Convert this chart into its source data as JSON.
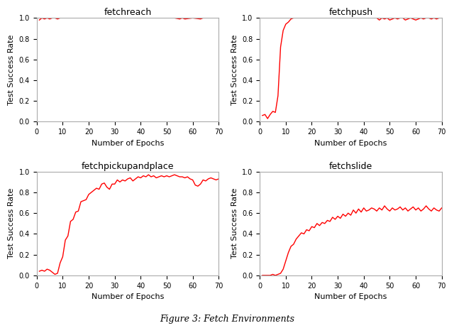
{
  "line_color": "#ff0000",
  "line_width": 1.0,
  "xlim": [
    0,
    70
  ],
  "ylim": [
    0.0,
    1.0
  ],
  "xlabel": "Number of Epochs",
  "ylabel": "Test Success Rate",
  "xticks": [
    0,
    10,
    20,
    30,
    40,
    50,
    60,
    70
  ],
  "yticks": [
    0.0,
    0.2,
    0.4,
    0.6,
    0.8,
    1.0
  ],
  "subplots": [
    {
      "title": "fetchreach",
      "x": [
        1,
        2,
        3,
        4,
        5,
        6,
        7,
        8,
        9,
        10,
        11,
        12,
        13,
        14,
        15,
        20,
        25,
        30,
        35,
        40,
        45,
        50,
        53,
        55,
        56,
        57,
        60,
        63,
        64,
        65,
        70
      ],
      "y": [
        0.98,
        1.0,
        0.99,
        1.0,
        0.99,
        1.0,
        1.0,
        0.99,
        1.0,
        1.0,
        1.0,
        1.0,
        1.0,
        1.0,
        1.0,
        1.0,
        1.0,
        1.0,
        1.0,
        1.0,
        1.0,
        1.0,
        1.0,
        0.99,
        1.0,
        0.99,
        1.0,
        0.99,
        1.0,
        1.0,
        1.0
      ]
    },
    {
      "title": "fetchpush",
      "x": [
        1,
        2,
        3,
        4,
        5,
        6,
        7,
        8,
        9,
        10,
        11,
        12,
        13,
        14,
        15,
        16,
        17,
        18,
        19,
        20,
        21,
        22,
        23,
        24,
        25,
        26,
        27,
        28,
        29,
        30,
        31,
        32,
        33,
        34,
        35,
        36,
        37,
        38,
        39,
        40,
        41,
        42,
        43,
        44,
        45,
        46,
        47,
        48,
        49,
        50,
        51,
        52,
        53,
        54,
        55,
        56,
        57,
        58,
        59,
        60,
        61,
        62,
        63,
        64,
        65,
        66,
        67,
        68,
        69,
        70
      ],
      "y": [
        0.06,
        0.07,
        0.03,
        0.07,
        0.1,
        0.09,
        0.25,
        0.72,
        0.88,
        0.94,
        0.96,
        0.99,
        1.0,
        1.0,
        1.0,
        1.0,
        1.0,
        1.0,
        1.0,
        1.0,
        1.0,
        1.0,
        1.0,
        1.0,
        1.0,
        1.0,
        1.0,
        1.0,
        1.0,
        1.0,
        1.0,
        1.0,
        1.0,
        1.0,
        1.0,
        1.0,
        1.0,
        1.0,
        1.0,
        1.0,
        1.0,
        1.0,
        1.0,
        1.0,
        1.0,
        0.98,
        1.0,
        0.99,
        1.0,
        0.98,
        0.99,
        1.0,
        0.99,
        1.0,
        1.0,
        0.98,
        0.99,
        1.0,
        0.99,
        0.98,
        0.99,
        1.0,
        0.99,
        1.0,
        1.0,
        0.99,
        1.0,
        0.99,
        1.0,
        1.0
      ]
    },
    {
      "title": "fetchpickupandplace",
      "x": [
        1,
        2,
        3,
        4,
        5,
        6,
        7,
        8,
        9,
        10,
        11,
        12,
        13,
        14,
        15,
        16,
        17,
        18,
        19,
        20,
        21,
        22,
        23,
        24,
        25,
        26,
        27,
        28,
        29,
        30,
        31,
        32,
        33,
        34,
        35,
        36,
        37,
        38,
        39,
        40,
        41,
        42,
        43,
        44,
        45,
        46,
        47,
        48,
        49,
        50,
        51,
        52,
        53,
        54,
        55,
        56,
        57,
        58,
        59,
        60,
        61,
        62,
        63,
        64,
        65,
        66,
        67,
        68,
        69,
        70
      ],
      "y": [
        0.04,
        0.05,
        0.04,
        0.06,
        0.05,
        0.03,
        0.01,
        0.02,
        0.12,
        0.18,
        0.34,
        0.38,
        0.52,
        0.54,
        0.61,
        0.62,
        0.71,
        0.72,
        0.73,
        0.78,
        0.8,
        0.82,
        0.84,
        0.83,
        0.88,
        0.89,
        0.85,
        0.83,
        0.88,
        0.88,
        0.92,
        0.9,
        0.92,
        0.91,
        0.93,
        0.94,
        0.91,
        0.93,
        0.95,
        0.94,
        0.96,
        0.95,
        0.97,
        0.95,
        0.96,
        0.94,
        0.95,
        0.96,
        0.95,
        0.96,
        0.95,
        0.96,
        0.97,
        0.96,
        0.95,
        0.95,
        0.94,
        0.95,
        0.93,
        0.92,
        0.87,
        0.86,
        0.88,
        0.92,
        0.91,
        0.93,
        0.94,
        0.93,
        0.92,
        0.93
      ]
    },
    {
      "title": "fetchslide",
      "x": [
        1,
        2,
        3,
        4,
        5,
        6,
        7,
        8,
        9,
        10,
        11,
        12,
        13,
        14,
        15,
        16,
        17,
        18,
        19,
        20,
        21,
        22,
        23,
        24,
        25,
        26,
        27,
        28,
        29,
        30,
        31,
        32,
        33,
        34,
        35,
        36,
        37,
        38,
        39,
        40,
        41,
        42,
        43,
        44,
        45,
        46,
        47,
        48,
        49,
        50,
        51,
        52,
        53,
        54,
        55,
        56,
        57,
        58,
        59,
        60,
        61,
        62,
        63,
        64,
        65,
        66,
        67,
        68,
        69,
        70
      ],
      "y": [
        0.0,
        0.0,
        0.0,
        0.0,
        0.01,
        0.0,
        0.01,
        0.02,
        0.06,
        0.14,
        0.22,
        0.28,
        0.3,
        0.35,
        0.38,
        0.41,
        0.4,
        0.44,
        0.43,
        0.47,
        0.46,
        0.5,
        0.48,
        0.51,
        0.5,
        0.53,
        0.52,
        0.56,
        0.54,
        0.57,
        0.55,
        0.59,
        0.57,
        0.6,
        0.58,
        0.63,
        0.6,
        0.64,
        0.61,
        0.65,
        0.62,
        0.63,
        0.65,
        0.64,
        0.62,
        0.65,
        0.63,
        0.67,
        0.64,
        0.62,
        0.65,
        0.63,
        0.64,
        0.66,
        0.63,
        0.65,
        0.62,
        0.64,
        0.66,
        0.63,
        0.65,
        0.62,
        0.64,
        0.67,
        0.64,
        0.62,
        0.65,
        0.63,
        0.62,
        0.65
      ]
    }
  ],
  "figure_caption": "Figure 3: Fetch Environments"
}
